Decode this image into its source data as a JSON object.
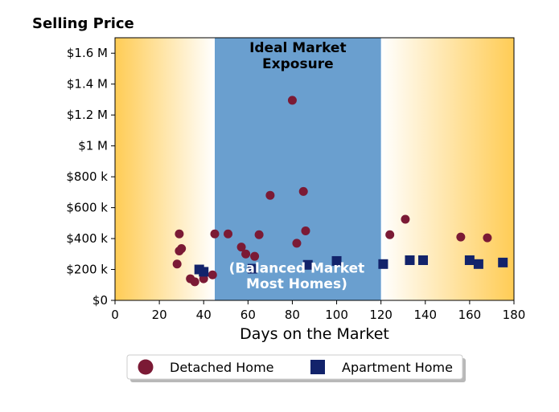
{
  "chart_data": {
    "type": "scatter",
    "title": "Selling Price",
    "xlabel": "Days on the Market",
    "ylabel": "",
    "xlim": [
      0,
      180
    ],
    "ylim": [
      0,
      1700000
    ],
    "x_ticks": [
      0,
      20,
      40,
      60,
      80,
      100,
      120,
      140,
      160,
      180
    ],
    "x_tick_labels": [
      "0",
      "20",
      "40",
      "60",
      "80",
      "100",
      "120",
      "140",
      "160",
      "180"
    ],
    "y_ticks": [
      0,
      200000,
      400000,
      600000,
      800000,
      1000000,
      1200000,
      1400000,
      1600000
    ],
    "y_tick_labels": [
      "$0",
      "$200 k",
      "$400 k",
      "$600 k",
      "$800 k",
      "$1 M",
      "$1.2 M",
      "$1.4 M",
      "$1.6 M"
    ],
    "bands": [
      {
        "x_range": [
          45,
          120
        ],
        "label_line1": "Ideal Market",
        "label_line2": "Exposure",
        "color": "#6a9fcf",
        "label_color": "#000000"
      }
    ],
    "band_annotation": {
      "line1": "(Balanced Market",
      "line2": "Most Homes)",
      "color": "#ffffff",
      "x": 82,
      "y1": 210000,
      "y2": 110000
    },
    "edge_gradient": {
      "outer_color": "#ffcc55",
      "inner_color": "#ffffff"
    },
    "legend_position": "bottom-center",
    "series": [
      {
        "name": "Detached Home",
        "marker": "circle",
        "color": "#7b1a35",
        "points": [
          [
            28,
            235000
          ],
          [
            29,
            430000
          ],
          [
            29,
            320000
          ],
          [
            30,
            335000
          ],
          [
            34,
            140000
          ],
          [
            36,
            120000
          ],
          [
            40,
            140000
          ],
          [
            44,
            165000
          ],
          [
            45,
            430000
          ],
          [
            51,
            430000
          ],
          [
            57,
            345000
          ],
          [
            59,
            300000
          ],
          [
            63,
            285000
          ],
          [
            65,
            425000
          ],
          [
            70,
            680000
          ],
          [
            80,
            1295000
          ],
          [
            82,
            370000
          ],
          [
            85,
            705000
          ],
          [
            86,
            450000
          ],
          [
            124,
            425000
          ],
          [
            131,
            525000
          ],
          [
            156,
            410000
          ],
          [
            168,
            405000
          ]
        ]
      },
      {
        "name": "Apartment Home",
        "marker": "square",
        "color": "#12236b",
        "points": [
          [
            38,
            200000
          ],
          [
            40,
            185000
          ],
          [
            62,
            205000
          ],
          [
            87,
            230000
          ],
          [
            100,
            255000
          ],
          [
            121,
            235000
          ],
          [
            133,
            260000
          ],
          [
            139,
            260000
          ],
          [
            160,
            260000
          ],
          [
            164,
            235000
          ],
          [
            175,
            245000
          ]
        ]
      }
    ]
  }
}
